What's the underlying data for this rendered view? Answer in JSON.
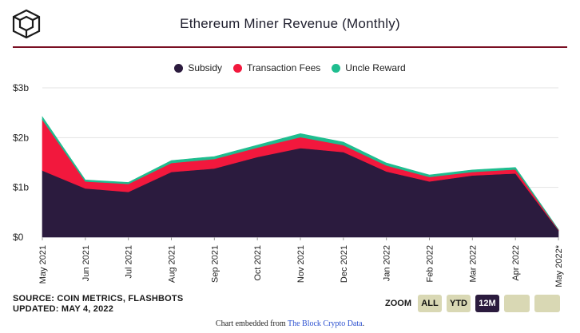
{
  "header": {
    "title": "Ethereum Miner Revenue (Monthly)"
  },
  "chart_data": {
    "type": "area",
    "stacked": true,
    "x": [
      "May 2021",
      "Jun 2021",
      "Jul 2021",
      "Aug 2021",
      "Sep 2021",
      "Oct 2021",
      "Nov 2021",
      "Dec 2021",
      "Jan 2022",
      "Feb 2022",
      "Mar 2022",
      "Apr 2022",
      "May 2022*"
    ],
    "series": [
      {
        "name": "Subsidy",
        "color": "#2b1b3e",
        "values": [
          1.34,
          0.98,
          0.91,
          1.31,
          1.38,
          1.61,
          1.79,
          1.71,
          1.32,
          1.12,
          1.24,
          1.28,
          0.14
        ]
      },
      {
        "name": "Transaction Fees",
        "color": "#f2183d",
        "values": [
          1.02,
          0.14,
          0.16,
          0.18,
          0.19,
          0.19,
          0.22,
          0.14,
          0.12,
          0.09,
          0.07,
          0.08,
          0.01
        ]
      },
      {
        "name": "Uncle Reward",
        "color": "#1fbd8f",
        "values": [
          0.06,
          0.03,
          0.03,
          0.05,
          0.05,
          0.05,
          0.07,
          0.06,
          0.05,
          0.04,
          0.04,
          0.04,
          0.005
        ]
      }
    ],
    "yticks": [
      "$0",
      "$1b",
      "$2b",
      "$3b"
    ],
    "ylim": [
      0,
      3
    ],
    "grid": true,
    "legend_position": "top-center"
  },
  "footer": {
    "source": "SOURCE: COIN METRICS, FLASHBOTS",
    "updated": "UPDATED: MAY 4, 2022"
  },
  "zoom": {
    "label": "ZOOM",
    "buttons": [
      "ALL",
      "YTD",
      "12M"
    ],
    "active": "12M"
  },
  "embed": {
    "prefix": "Chart embedded from ",
    "link": "The Block Crypto Data",
    "suffix": "."
  },
  "colors": {
    "accent": "#7a0f23",
    "button": "#d9d8b4",
    "button_active": "#2b1b3e"
  }
}
